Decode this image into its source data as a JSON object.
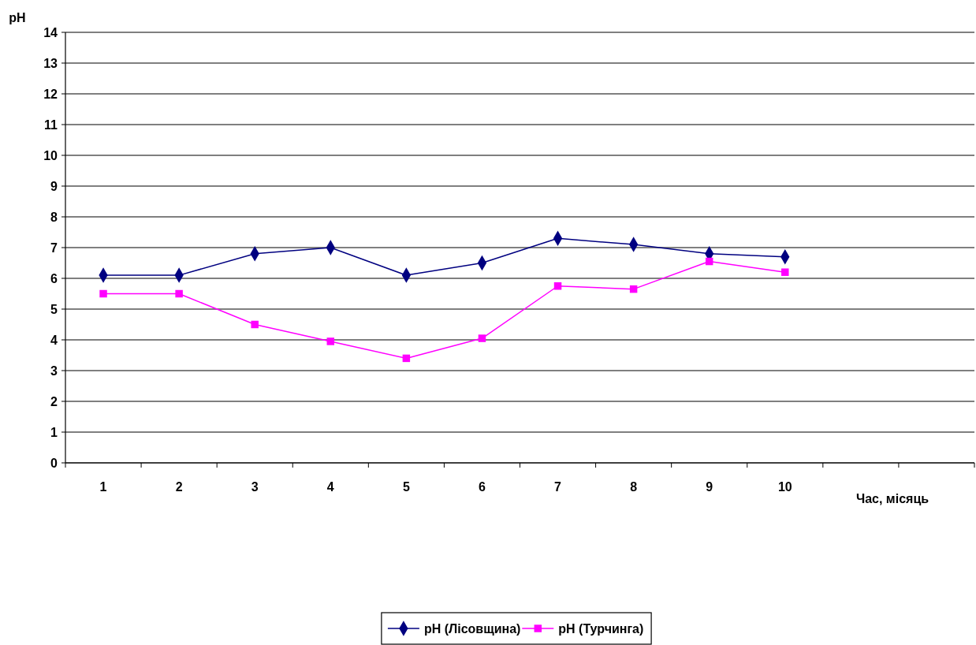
{
  "chart_data": {
    "type": "line",
    "ylabel": "pH",
    "xlabel": "Час, місяць",
    "categories": [
      "1",
      "2",
      "3",
      "4",
      "5",
      "6",
      "7",
      "8",
      "9",
      "10",
      null,
      null
    ],
    "series": [
      {
        "name": "pH (Лісовщина)",
        "color": "#000080",
        "marker": "diamond",
        "values": [
          6.1,
          6.1,
          6.8,
          7.0,
          6.1,
          6.5,
          7.3,
          7.1,
          6.8,
          6.7,
          null,
          null
        ]
      },
      {
        "name": "pH (Турчинга)",
        "color": "#ff00ff",
        "marker": "square",
        "values": [
          5.5,
          5.5,
          4.5,
          3.95,
          3.4,
          4.05,
          5.75,
          5.65,
          6.55,
          6.2,
          null,
          null
        ]
      }
    ],
    "ylim": [
      0,
      14
    ],
    "yticks": [
      0,
      1,
      2,
      3,
      4,
      5,
      6,
      7,
      8,
      9,
      10,
      11,
      12,
      13,
      14
    ],
    "grid": "y",
    "legend": "bottom"
  }
}
